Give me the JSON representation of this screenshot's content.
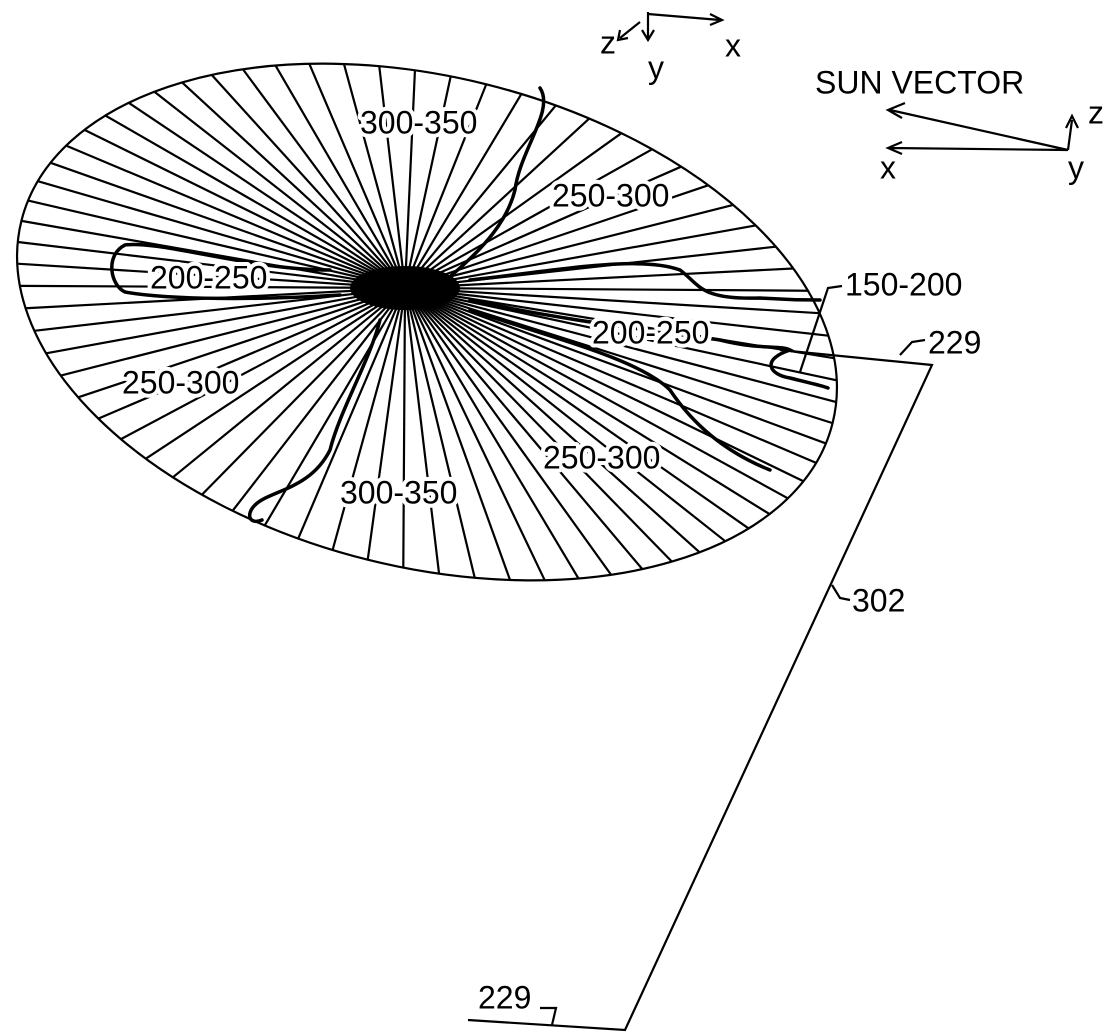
{
  "axes_top": {
    "z": "z",
    "y": "y",
    "x": "x"
  },
  "sun_vector": {
    "label": "SUN VECTOR",
    "x": "x",
    "y": "y",
    "z": "z"
  },
  "zones": [
    "300-350",
    "250-300",
    "200-250",
    "200-250",
    "250-300",
    "250-300",
    "300-350",
    "150-200"
  ],
  "references": [
    "229",
    "302",
    "229"
  ]
}
